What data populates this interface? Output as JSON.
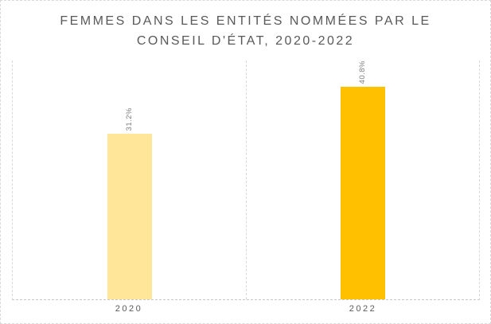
{
  "chart": {
    "title_lines": [
      "FEMMES DANS LES ENTITÉS NOMMÉES PAR LE",
      "CONSEIL D'ÉTAT, 2020-2022"
    ]
  },
  "chart_data": {
    "type": "bar",
    "title": "FEMMES DANS LES ENTITÉS NOMMÉES PAR LE CONSEIL D'ÉTAT, 2020-2022",
    "categories": [
      "2020",
      "2022"
    ],
    "values": [
      31.2,
      40.8
    ],
    "data_labels": [
      "31.2%",
      "40.8%"
    ],
    "data_label_rotation": "vertical-bottom-to-top",
    "xlabel": "",
    "ylabel": "",
    "ylim": [
      0,
      45
    ],
    "y_axis_visible": false,
    "gridlines": "vertical category separators, dashed",
    "legend": "none",
    "bar_colors": [
      "#FFE699",
      "#FFC000"
    ],
    "text_color": "#595959",
    "border_color": "#D9D9D9",
    "background": "#FFFFFF"
  }
}
